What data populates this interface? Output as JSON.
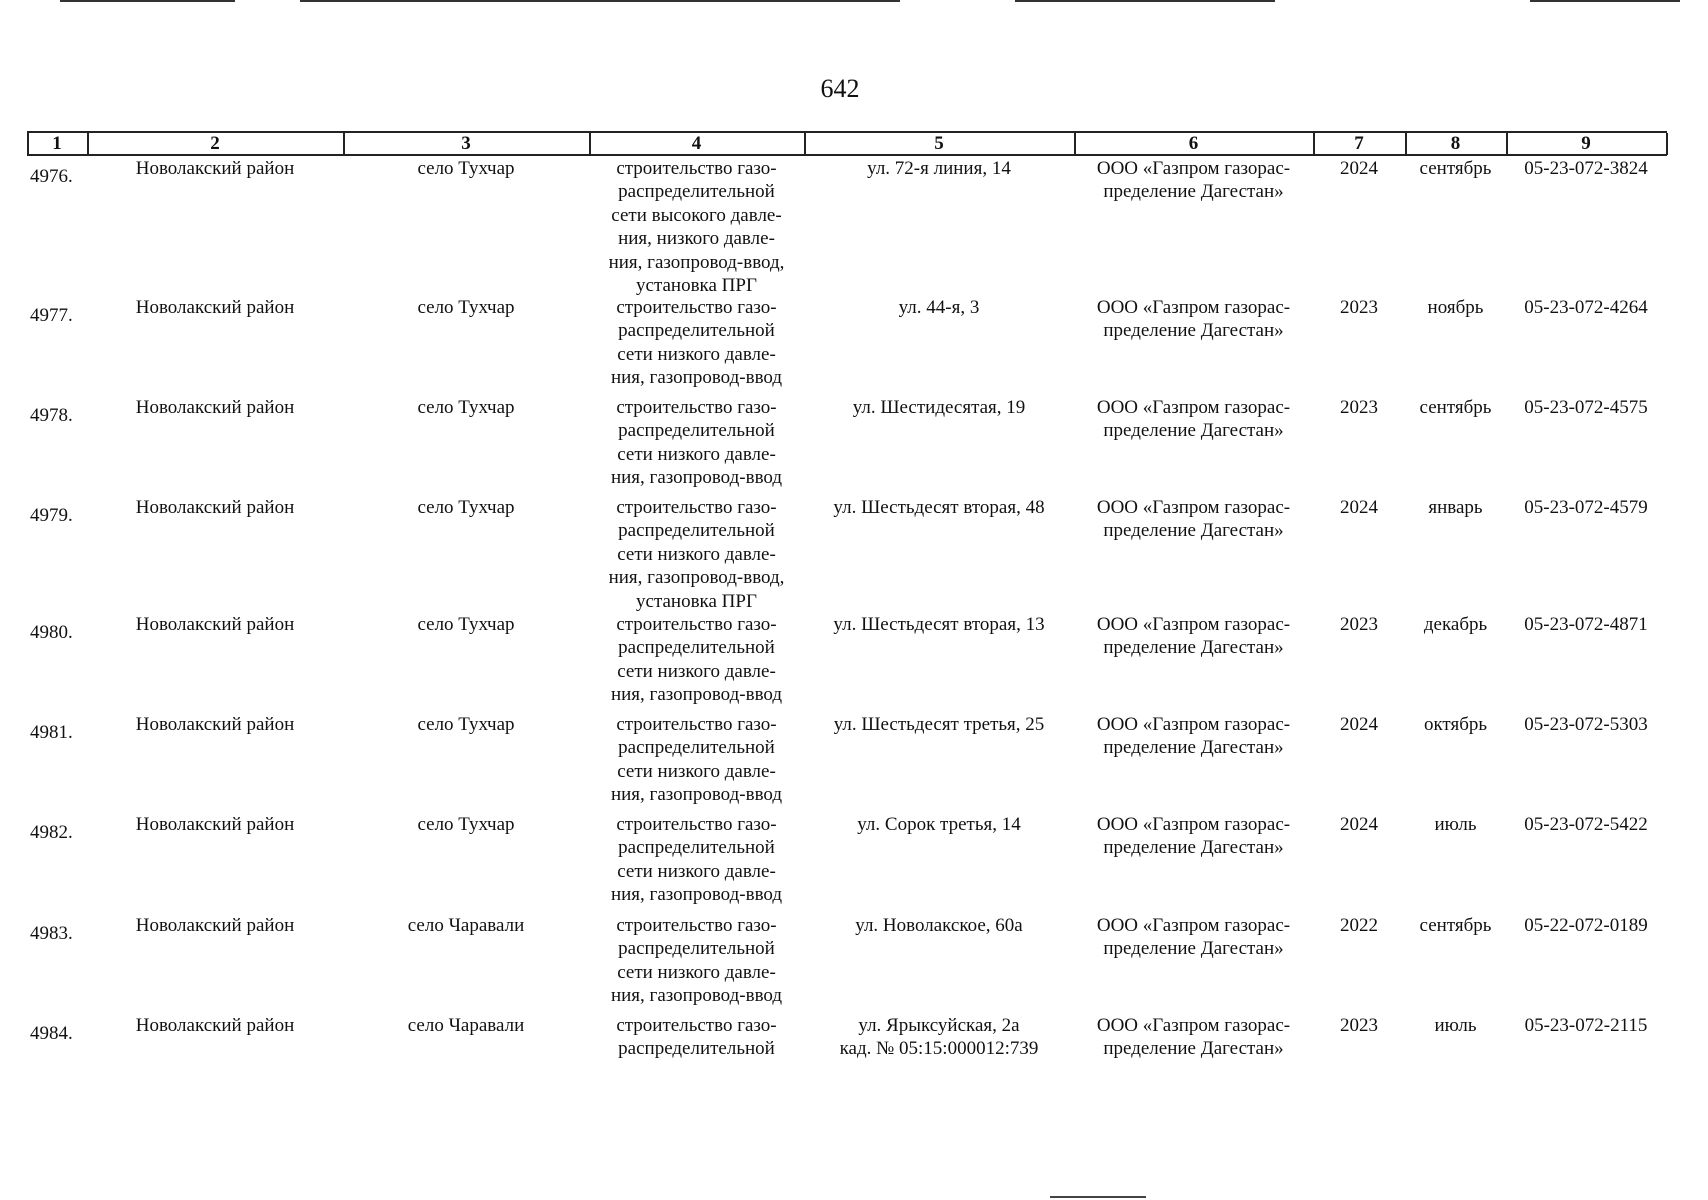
{
  "page_number": "642",
  "columns": [
    "1",
    "2",
    "3",
    "4",
    "5",
    "6",
    "7",
    "8",
    "9"
  ],
  "rows": [
    {
      "num": "4976.",
      "district": "Новолакский район",
      "settlement": "село Тухчар",
      "work": [
        "строительство газо-",
        "распределительной",
        "сети высокого давле-",
        "ния, низкого давле-",
        "ния, газопровод-ввод,",
        "установка ПРГ"
      ],
      "address": [
        "ул. 72-я линия, 14"
      ],
      "org": [
        "ООО «Газпром газорас-",
        "пределение Дагестан»"
      ],
      "year": "2024",
      "month": "сентябрь",
      "code": "05-23-072-3824"
    },
    {
      "num": "4977.",
      "district": "Новолакский район",
      "settlement": "село Тухчар",
      "work": [
        "строительство газо-",
        "распределительной",
        "сети низкого давле-",
        "ния, газопровод-ввод"
      ],
      "address": [
        "ул. 44-я, 3"
      ],
      "org": [
        "ООО «Газпром газорас-",
        "пределение Дагестан»"
      ],
      "year": "2023",
      "month": "ноябрь",
      "code": "05-23-072-4264"
    },
    {
      "num": "4978.",
      "district": "Новолакский район",
      "settlement": "село Тухчар",
      "work": [
        "строительство газо-",
        "распределительной",
        "сети низкого давле-",
        "ния, газопровод-ввод"
      ],
      "address": [
        "ул. Шестидесятая, 19"
      ],
      "org": [
        "ООО «Газпром газорас-",
        "пределение Дагестан»"
      ],
      "year": "2023",
      "month": "сентябрь",
      "code": "05-23-072-4575"
    },
    {
      "num": "4979.",
      "district": "Новолакский район",
      "settlement": "село Тухчар",
      "work": [
        "строительство газо-",
        "распределительной",
        "сети низкого давле-",
        "ния, газопровод-ввод,",
        "установка ПРГ"
      ],
      "address": [
        "ул. Шестьдесят вторая, 48"
      ],
      "org": [
        "ООО «Газпром газорас-",
        "пределение Дагестан»"
      ],
      "year": "2024",
      "month": "январь",
      "code": "05-23-072-4579"
    },
    {
      "num": "4980.",
      "district": "Новолакский район",
      "settlement": "село Тухчар",
      "work": [
        "строительство газо-",
        "распределительной",
        "сети низкого давле-",
        "ния, газопровод-ввод"
      ],
      "address": [
        "ул. Шестьдесят вторая, 13"
      ],
      "org": [
        "ООО «Газпром газорас-",
        "пределение Дагестан»"
      ],
      "year": "2023",
      "month": "декабрь",
      "code": "05-23-072-4871"
    },
    {
      "num": "4981.",
      "district": "Новолакский район",
      "settlement": "село Тухчар",
      "work": [
        "строительство газо-",
        "распределительной",
        "сети низкого давле-",
        "ния, газопровод-ввод"
      ],
      "address": [
        "ул. Шестьдесят третья, 25"
      ],
      "org": [
        "ООО «Газпром газорас-",
        "пределение Дагестан»"
      ],
      "year": "2024",
      "month": "октябрь",
      "code": "05-23-072-5303"
    },
    {
      "num": "4982.",
      "district": "Новолакский район",
      "settlement": "село Тухчар",
      "work": [
        "строительство газо-",
        "распределительной",
        "сети низкого давле-",
        "ния, газопровод-ввод"
      ],
      "address": [
        "ул. Сорок третья, 14"
      ],
      "org": [
        "ООО «Газпром газорас-",
        "пределение Дагестан»"
      ],
      "year": "2024",
      "month": "июль",
      "code": "05-23-072-5422"
    },
    {
      "num": "4983.",
      "district": "Новолакский район",
      "settlement": "село Чаравали",
      "work": [
        "строительство газо-",
        "распределительной",
        "сети низкого давле-",
        "ния, газопровод-ввод"
      ],
      "address": [
        "ул. Новолакское,  60а"
      ],
      "org": [
        "ООО «Газпром газорас-",
        "пределение Дагестан»"
      ],
      "year": "2022",
      "month": "сентябрь",
      "code": "05-22-072-0189"
    },
    {
      "num": "4984.",
      "district": "Новолакский район",
      "settlement": "село Чаравали",
      "work": [
        "строительство газо-",
        "распределительной"
      ],
      "address": [
        "ул. Ярыксуйская, 2а",
        "кад. № 05:15:000012:739"
      ],
      "org": [
        "ООО «Газпром газорас-",
        "пределение Дагестан»"
      ],
      "year": "2023",
      "month": "июль",
      "code": "05-23-072-2115"
    }
  ]
}
